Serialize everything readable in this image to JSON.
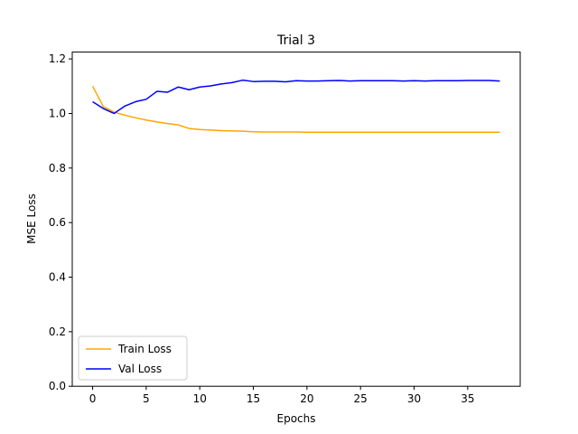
{
  "chart_data": {
    "type": "line",
    "title": "Trial 3",
    "xlabel": "Epochs",
    "ylabel": "MSE Loss",
    "xlim": [
      -1.9,
      39.9
    ],
    "ylim": [
      0.0,
      1.225
    ],
    "xticks": [
      0,
      5,
      10,
      15,
      20,
      25,
      30,
      35
    ],
    "yticks": [
      0.0,
      0.2,
      0.4,
      0.6,
      0.8,
      1.0,
      1.2
    ],
    "grid": false,
    "legend_position": "lower-left",
    "x": [
      0,
      1,
      2,
      3,
      4,
      5,
      6,
      7,
      8,
      9,
      10,
      11,
      12,
      13,
      14,
      15,
      16,
      17,
      18,
      19,
      20,
      21,
      22,
      23,
      24,
      25,
      26,
      27,
      28,
      29,
      30,
      31,
      32,
      33,
      34,
      35,
      36,
      37,
      38
    ],
    "series": [
      {
        "name": "Train Loss",
        "color": "#ffa500",
        "values": [
          1.1,
          1.025,
          1.005,
          0.994,
          0.984,
          0.976,
          0.969,
          0.963,
          0.958,
          0.945,
          0.941,
          0.939,
          0.937,
          0.936,
          0.935,
          0.933,
          0.932,
          0.932,
          0.932,
          0.932,
          0.931,
          0.931,
          0.931,
          0.931,
          0.931,
          0.931,
          0.931,
          0.931,
          0.931,
          0.931,
          0.931,
          0.931,
          0.931,
          0.931,
          0.931,
          0.931,
          0.931,
          0.931,
          0.931
        ]
      },
      {
        "name": "Val Loss",
        "color": "#0000ff",
        "values": [
          1.043,
          1.018,
          1.0,
          1.027,
          1.043,
          1.052,
          1.081,
          1.078,
          1.097,
          1.087,
          1.097,
          1.101,
          1.108,
          1.113,
          1.122,
          1.117,
          1.118,
          1.118,
          1.116,
          1.12,
          1.119,
          1.119,
          1.12,
          1.121,
          1.119,
          1.12,
          1.12,
          1.12,
          1.12,
          1.119,
          1.12,
          1.119,
          1.12,
          1.12,
          1.12,
          1.121,
          1.121,
          1.121,
          1.119
        ]
      }
    ]
  }
}
